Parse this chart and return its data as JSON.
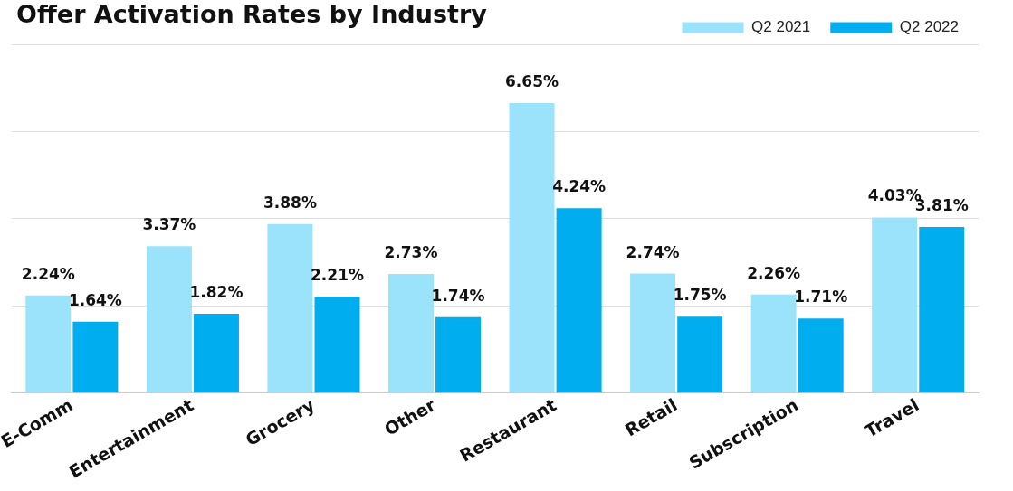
{
  "chart_data": {
    "type": "bar",
    "title": "Offer Activation Rates by Industry",
    "categories": [
      "E-Comm",
      "Entertainment",
      "Grocery",
      "Other",
      "Restaurant",
      "Retail",
      "Subscription",
      "Travel"
    ],
    "series": [
      {
        "name": "Q2 2021",
        "color": "#9be3fb",
        "values": [
          2.24,
          3.37,
          3.88,
          2.73,
          6.65,
          2.74,
          2.26,
          4.03
        ],
        "value_labels": [
          "2.24%",
          "3.37%",
          "3.88%",
          "2.73%",
          "6.65%",
          "2.74%",
          "2.26%",
          "4.03%"
        ]
      },
      {
        "name": "Q2 2022",
        "color": "#00aeef",
        "values": [
          1.64,
          1.82,
          2.21,
          1.74,
          4.24,
          1.75,
          1.71,
          3.81
        ],
        "value_labels": [
          "1.64%",
          "1.82%",
          "2.21%",
          "1.74%",
          "4.24%",
          "1.75%",
          "1.71%",
          "3.81%"
        ]
      }
    ],
    "ylim": [
      0,
      8
    ],
    "yticks": [
      {
        "value": 0,
        "label": null
      },
      {
        "value": 2,
        "label": null
      },
      {
        "value": 4,
        "label": null
      },
      {
        "value": 6,
        "label": null
      },
      {
        "value": 8,
        "label": null
      }
    ],
    "tick_labels": "x",
    "grid": "y",
    "legend": "top right"
  }
}
